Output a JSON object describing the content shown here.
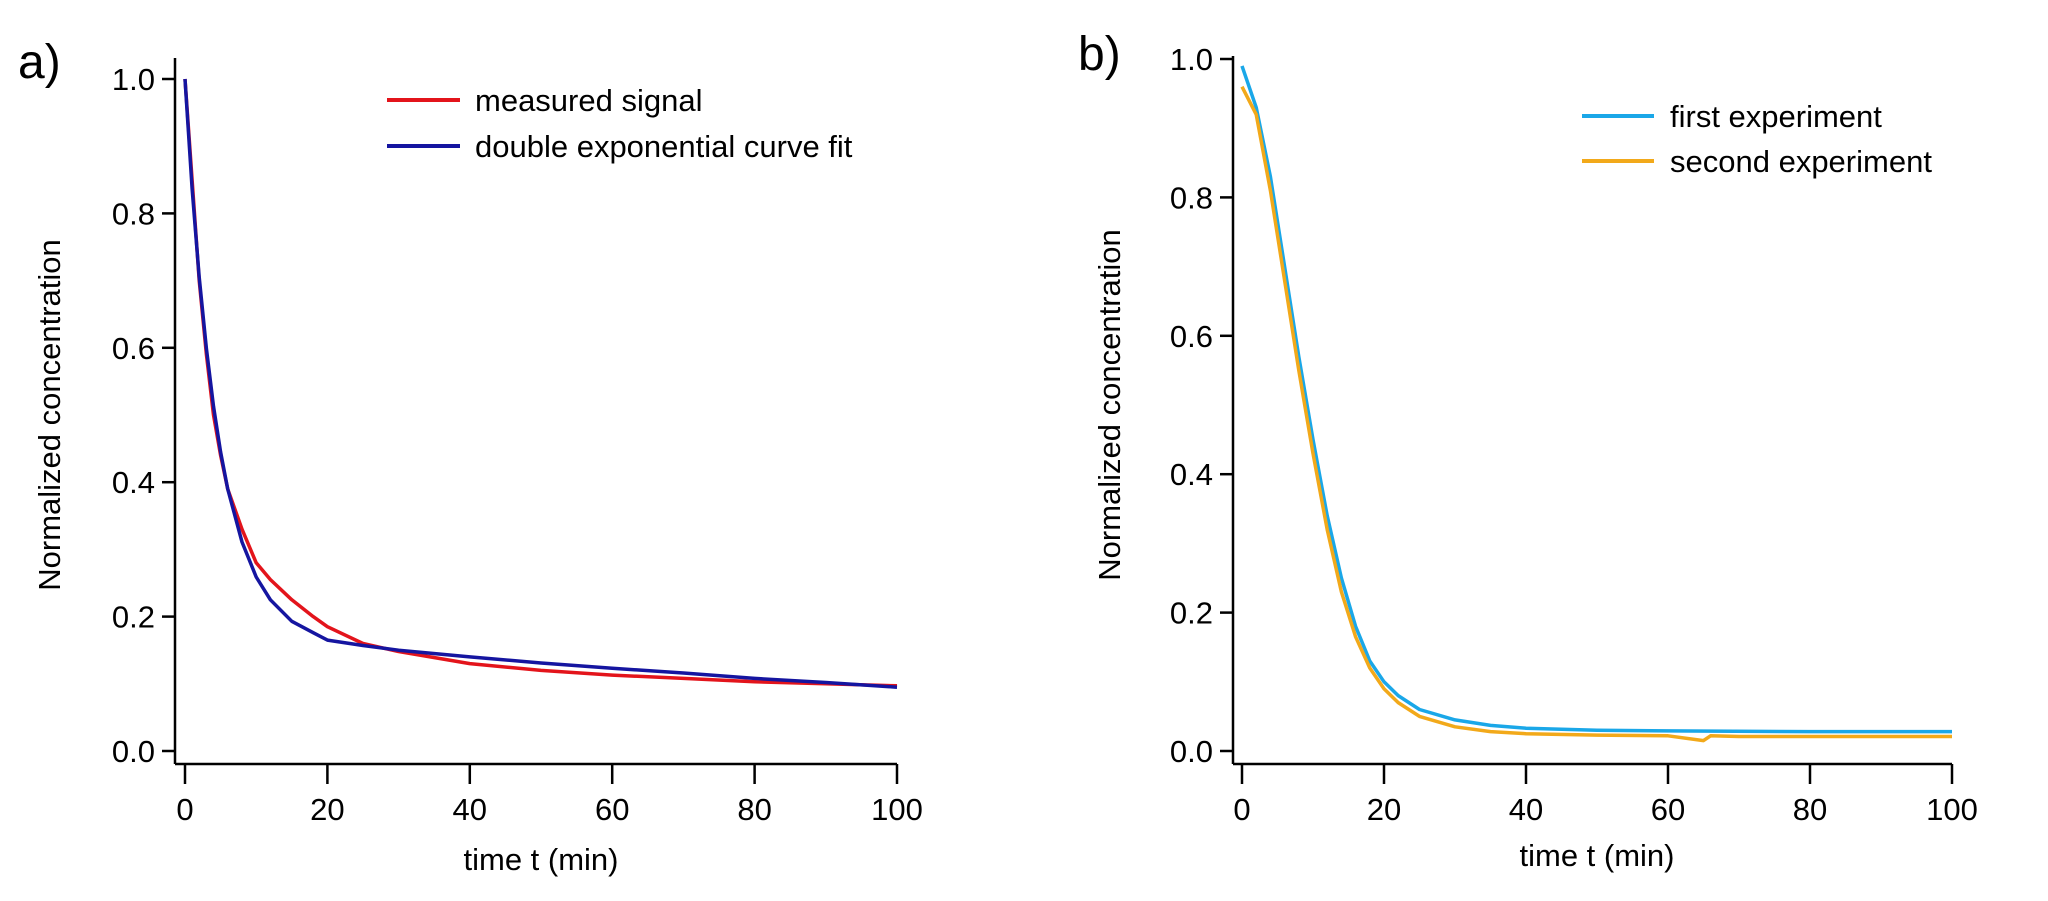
{
  "chart_data": [
    {
      "type": "line",
      "panel_label": "a)",
      "xlabel": "time t (min)",
      "ylabel": "Normalized concentration",
      "xlim": [
        0,
        100
      ],
      "ylim": [
        0,
        1.0
      ],
      "xticks": [
        "0",
        "20",
        "40",
        "60",
        "80",
        "100"
      ],
      "yticks": [
        "0.0",
        "0.2",
        "0.4",
        "0.6",
        "0.8",
        "1.0"
      ],
      "grid": false,
      "legend_position": "top-right",
      "series": [
        {
          "name": "measured signal",
          "color": "#e3141b",
          "x": [
            0,
            1,
            2,
            3,
            4,
            5,
            6,
            8,
            10,
            12,
            15,
            18,
            20,
            25,
            30,
            40,
            50,
            60,
            70,
            80,
            90,
            100
          ],
          "y": [
            1.0,
            0.85,
            0.7,
            0.59,
            0.5,
            0.44,
            0.39,
            0.33,
            0.28,
            0.255,
            0.225,
            0.2,
            0.185,
            0.16,
            0.148,
            0.13,
            0.12,
            0.113,
            0.108,
            0.103,
            0.1,
            0.097
          ]
        },
        {
          "name": "double exponential curve fit",
          "color": "#1515a0",
          "x": [
            0,
            1,
            2,
            3,
            4,
            5,
            6,
            8,
            10,
            12,
            15,
            18,
            20,
            25,
            30,
            40,
            50,
            60,
            70,
            80,
            90,
            100
          ],
          "y": [
            1.0,
            0.837,
            0.705,
            0.599,
            0.513,
            0.445,
            0.39,
            0.311,
            0.259,
            0.225,
            0.193,
            0.176,
            0.165,
            0.157,
            0.15,
            0.14,
            0.131,
            0.123,
            0.116,
            0.108,
            0.102,
            0.095
          ]
        }
      ]
    },
    {
      "type": "line",
      "panel_label": "b)",
      "xlabel": "time t (min)",
      "ylabel": "Normalized concentration",
      "xlim": [
        0,
        100
      ],
      "ylim": [
        0,
        1.0
      ],
      "xticks": [
        "0",
        "20",
        "40",
        "60",
        "80",
        "100"
      ],
      "yticks": [
        "0.0",
        "0.2",
        "0.4",
        "0.6",
        "0.8",
        "1.0"
      ],
      "grid": false,
      "legend_position": "top-right",
      "series": [
        {
          "name": "first experiment",
          "color": "#1aa7e8",
          "x": [
            0,
            2,
            4,
            6,
            8,
            10,
            12,
            14,
            16,
            18,
            20,
            22,
            25,
            30,
            35,
            40,
            50,
            60,
            80,
            100
          ],
          "y": [
            0.99,
            0.93,
            0.83,
            0.7,
            0.57,
            0.45,
            0.34,
            0.25,
            0.18,
            0.13,
            0.1,
            0.08,
            0.06,
            0.045,
            0.037,
            0.033,
            0.03,
            0.029,
            0.028,
            0.028
          ]
        },
        {
          "name": "second experiment",
          "color": "#f2a91a",
          "x": [
            0,
            2,
            4,
            6,
            8,
            10,
            12,
            14,
            16,
            18,
            20,
            22,
            25,
            30,
            35,
            40,
            50,
            60,
            65,
            66,
            70,
            80,
            100
          ],
          "y": [
            0.96,
            0.92,
            0.81,
            0.68,
            0.55,
            0.43,
            0.32,
            0.23,
            0.165,
            0.12,
            0.09,
            0.07,
            0.05,
            0.035,
            0.028,
            0.025,
            0.023,
            0.022,
            0.015,
            0.022,
            0.021,
            0.021,
            0.021
          ]
        }
      ]
    }
  ]
}
